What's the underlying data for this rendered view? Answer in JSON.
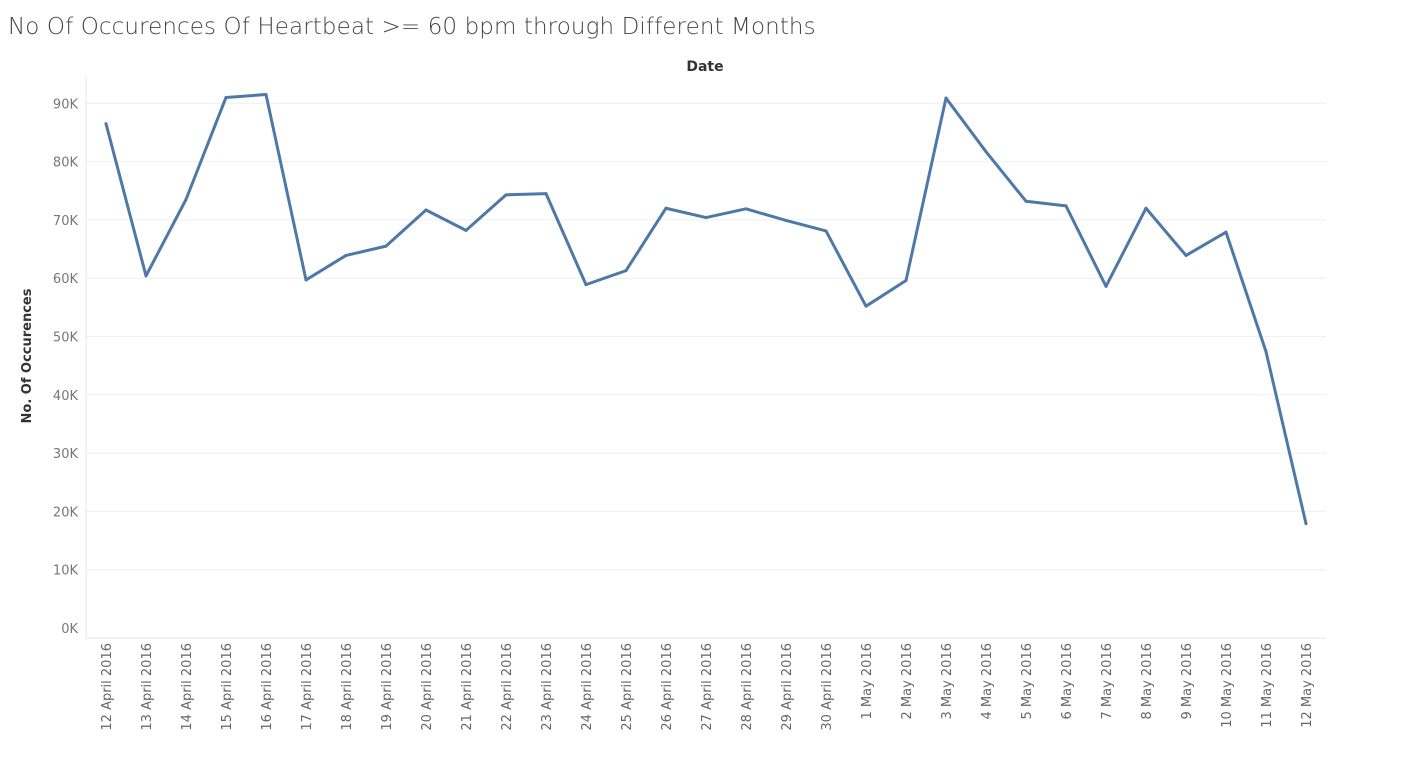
{
  "chart_data": {
    "type": "line",
    "title": "No Of Occurences Of Heartbeat >= 60 bpm through Different Months",
    "xlabel": "Date",
    "ylabel": "No. Of Occurences",
    "ylim": [
      0,
      95000
    ],
    "yticks": [
      "0K",
      "10K",
      "20K",
      "30K",
      "40K",
      "50K",
      "60K",
      "70K",
      "80K",
      "90K"
    ],
    "ytick_values": [
      0,
      10000,
      20000,
      30000,
      40000,
      50000,
      60000,
      70000,
      80000,
      90000
    ],
    "grid": true,
    "line_color": "#4e79a7",
    "categories": [
      "12 April 2016",
      "13 April 2016",
      "14 April 2016",
      "15 April 2016",
      "16 April 2016",
      "17 April 2016",
      "18 April 2016",
      "19 April 2016",
      "20 April 2016",
      "21 April 2016",
      "22 April 2016",
      "23 April 2016",
      "24 April 2016",
      "25 April 2016",
      "26 April 2016",
      "27 April 2016",
      "28 April 2016",
      "29 April 2016",
      "30 April 2016",
      "1 May 2016",
      "2 May 2016",
      "3 May 2016",
      "4 May 2016",
      "5 May 2016",
      "6 May 2016",
      "7 May 2016",
      "8 May 2016",
      "9 May 2016",
      "10 May 2016",
      "11 May 2016",
      "12 May 2016"
    ],
    "values": [
      86500,
      60400,
      73500,
      91000,
      91500,
      59700,
      63900,
      65500,
      71700,
      68200,
      74300,
      74500,
      58900,
      61300,
      72000,
      70400,
      71900,
      69900,
      68100,
      55200,
      59600,
      90900,
      81700,
      73200,
      72400,
      58600,
      72000,
      63900,
      67900,
      47400,
      17900
    ]
  }
}
